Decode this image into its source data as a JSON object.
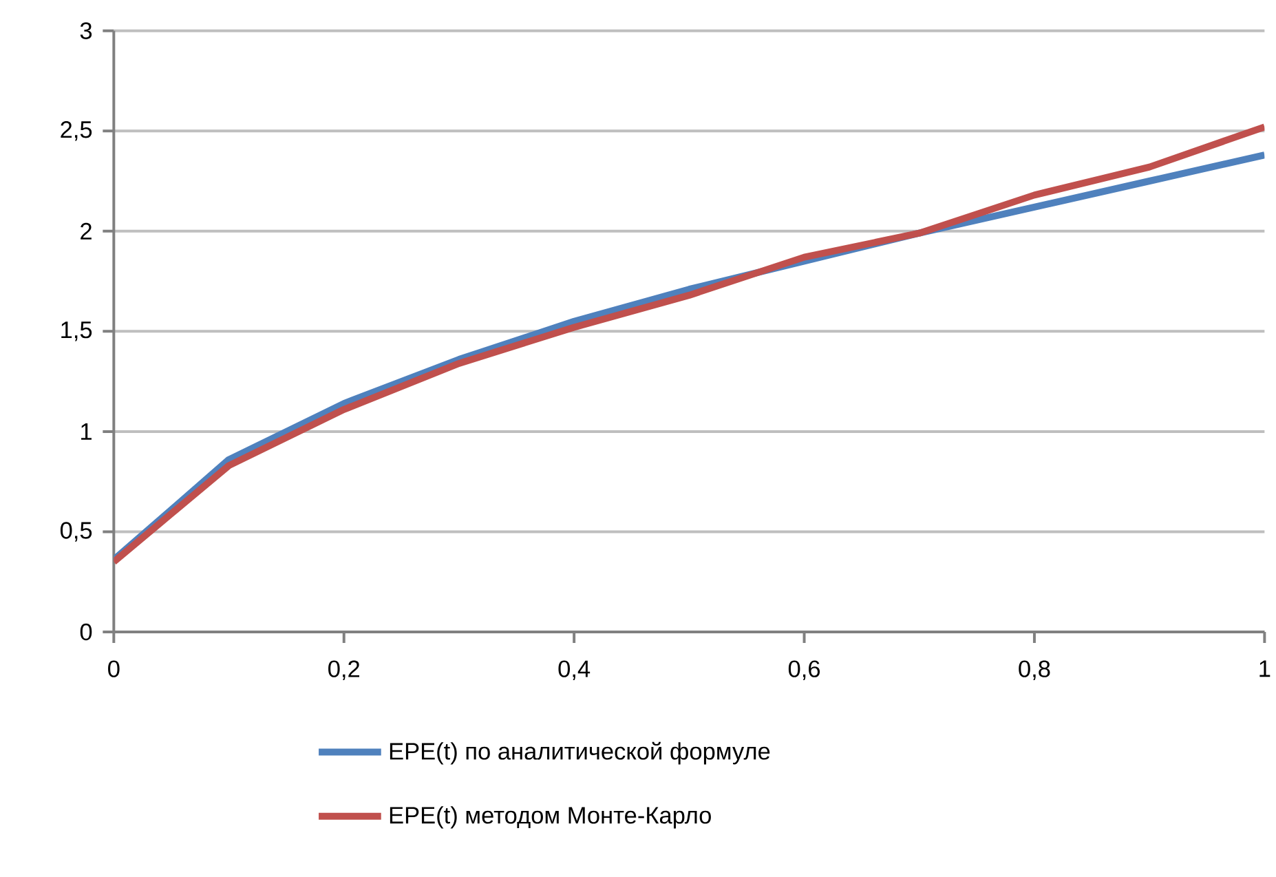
{
  "chart_data": {
    "type": "line",
    "x": [
      0,
      0.1,
      0.2,
      0.3,
      0.4,
      0.5,
      0.6,
      0.7,
      0.8,
      0.9,
      1
    ],
    "series": [
      {
        "name": "EPE(t) по аналитической формуле",
        "color": "#4f81bd",
        "values": [
          0.36,
          0.86,
          1.14,
          1.36,
          1.55,
          1.71,
          1.85,
          1.99,
          2.12,
          2.25,
          2.38
        ]
      },
      {
        "name": "EPE(t) методом Монте-Карло",
        "color": "#c0504d",
        "values": [
          0.35,
          0.83,
          1.11,
          1.34,
          1.52,
          1.68,
          1.87,
          1.99,
          2.18,
          2.32,
          2.52
        ]
      }
    ],
    "xlim": [
      0,
      1
    ],
    "ylim": [
      0,
      3
    ],
    "xticks": [
      0,
      {
        "value": 0.2,
        "label": "0,2"
      },
      {
        "value": 0.4,
        "label": "0,4"
      },
      {
        "value": 0.6,
        "label": "0,6"
      },
      {
        "value": 0.8,
        "label": "0,8"
      },
      1
    ],
    "yticks": [
      0,
      {
        "value": 0.5,
        "label": "0,5"
      },
      1,
      {
        "value": 1.5,
        "label": "1,5"
      },
      2,
      {
        "value": 2.5,
        "label": "2,5"
      },
      3
    ],
    "grid": "y",
    "legend": "bottom",
    "marker": "none",
    "line_style": "solid"
  }
}
